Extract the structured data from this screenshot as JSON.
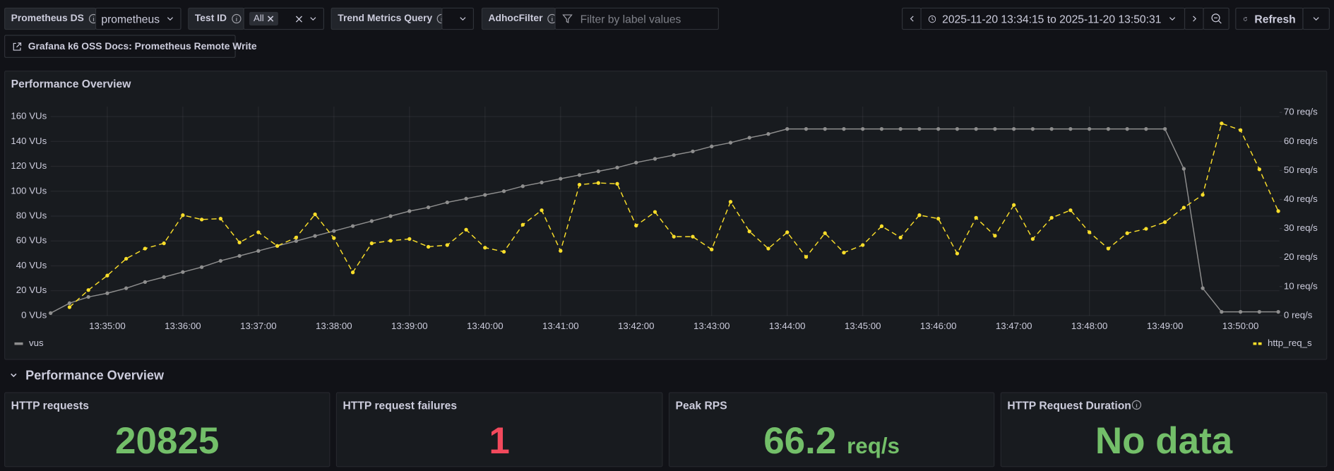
{
  "toolbar": {
    "datasource_label": "Prometheus DS",
    "datasource_value": "prometheus",
    "test_id_label": "Test ID",
    "test_id_value": "All",
    "trend_label": "Trend Metrics Query",
    "adhoc_label": "AdhocFilter",
    "adhoc_placeholder": "Filter by label values",
    "time_range": "2025-11-20 13:34:15 to 2025-11-20 13:50:31",
    "refresh": "Refresh"
  },
  "link": "Grafana k6 OSS Docs: Prometheus Remote Write",
  "chart_data": {
    "type": "line",
    "title": "Performance Overview",
    "grid": true,
    "x": [
      "13:34:15",
      "13:34:30",
      "13:34:45",
      "13:35:00",
      "13:35:15",
      "13:35:30",
      "13:35:45",
      "13:36:00",
      "13:36:15",
      "13:36:30",
      "13:36:45",
      "13:37:00",
      "13:37:15",
      "13:37:30",
      "13:37:45",
      "13:38:00",
      "13:38:15",
      "13:38:30",
      "13:38:45",
      "13:39:00",
      "13:39:15",
      "13:39:30",
      "13:39:45",
      "13:40:00",
      "13:40:15",
      "13:40:30",
      "13:40:45",
      "13:41:00",
      "13:41:15",
      "13:41:30",
      "13:41:45",
      "13:42:00",
      "13:42:15",
      "13:42:30",
      "13:42:45",
      "13:43:00",
      "13:43:15",
      "13:43:30",
      "13:43:45",
      "13:44:00",
      "13:44:15",
      "13:44:30",
      "13:44:45",
      "13:45:00",
      "13:45:15",
      "13:45:30",
      "13:45:45",
      "13:46:00",
      "13:46:15",
      "13:46:30",
      "13:46:45",
      "13:47:00",
      "13:47:15",
      "13:47:30",
      "13:47:45",
      "13:48:00",
      "13:48:15",
      "13:48:30",
      "13:48:45",
      "13:49:00",
      "13:49:15",
      "13:49:30",
      "13:49:45",
      "13:50:00",
      "13:50:15",
      "13:50:30"
    ],
    "xlim": [
      "13:34:15",
      "13:50:31"
    ],
    "xticks": [
      "13:35:00",
      "13:36:00",
      "13:37:00",
      "13:38:00",
      "13:39:00",
      "13:40:00",
      "13:41:00",
      "13:42:00",
      "13:43:00",
      "13:44:00",
      "13:45:00",
      "13:46:00",
      "13:47:00",
      "13:48:00",
      "13:49:00",
      "13:50:00"
    ],
    "ylim": [
      0,
      168
    ],
    "yticks": [
      {
        "value": 0,
        "label": "0 VUs"
      },
      {
        "value": 20,
        "label": "20 VUs"
      },
      {
        "value": 40,
        "label": "40 VUs"
      },
      {
        "value": 60,
        "label": "60 VUs"
      },
      {
        "value": 80,
        "label": "80 VUs"
      },
      {
        "value": 100,
        "label": "100 VUs"
      },
      {
        "value": 120,
        "label": "120 VUs"
      },
      {
        "value": 140,
        "label": "140 VUs"
      },
      {
        "value": 160,
        "label": "160 VUs"
      }
    ],
    "y2lim": [
      0,
      72
    ],
    "y2ticks": [
      {
        "value": 0,
        "label": "0 req/s"
      },
      {
        "value": 10,
        "label": "10 req/s"
      },
      {
        "value": 20,
        "label": "20 req/s"
      },
      {
        "value": 30,
        "label": "30 req/s"
      },
      {
        "value": 40,
        "label": "40 req/s"
      },
      {
        "value": 50,
        "label": "50 req/s"
      },
      {
        "value": 60,
        "label": "60 req/s"
      },
      {
        "value": 70,
        "label": "70 req/s"
      }
    ],
    "series": [
      {
        "name": "vus",
        "color": "#8e8e8e",
        "line_style": "solid",
        "axis": "y",
        "values": [
          2,
          10,
          15,
          18,
          22,
          27,
          31,
          35,
          39,
          44,
          48,
          52,
          56,
          60,
          64,
          68,
          72,
          76,
          80,
          84,
          87,
          91,
          94,
          97,
          100,
          104,
          107,
          110,
          113,
          116,
          119,
          123,
          126,
          129,
          132,
          136,
          139,
          143,
          146,
          150,
          150,
          150,
          150,
          150,
          150,
          150,
          150,
          150,
          150,
          150,
          150,
          150,
          150,
          150,
          150,
          150,
          150,
          150,
          150,
          150,
          118,
          22,
          3,
          3,
          3,
          3
        ]
      },
      {
        "name": "http_req_s",
        "color": "#fade2a",
        "line_style": "dashed",
        "axis": "y2",
        "values": [
          null,
          2.9,
          8.8,
          13.8,
          19.6,
          23.1,
          24.9,
          34.6,
          33.1,
          33.4,
          25.2,
          28.7,
          24.0,
          26.9,
          34.9,
          26.7,
          14.9,
          24.9,
          25.8,
          26.4,
          23.7,
          24.3,
          29.6,
          23.4,
          22.0,
          31.3,
          36.3,
          22.3,
          45.1,
          45.7,
          45.4,
          31.0,
          35.7,
          27.2,
          27.2,
          22.8,
          39.2,
          29.0,
          23.1,
          28.7,
          20.2,
          28.4,
          21.7,
          24.3,
          30.8,
          26.9,
          34.6,
          33.4,
          21.4,
          33.7,
          27.5,
          38.1,
          26.4,
          33.7,
          36.3,
          28.7,
          23.1,
          28.4,
          29.9,
          32.2,
          37.2,
          41.6,
          66.2,
          63.9,
          50.4,
          36.0
        ]
      }
    ]
  },
  "row_title": "Performance Overview",
  "stats": [
    {
      "title": "HTTP requests",
      "value": 20825,
      "color": "#73bf69"
    },
    {
      "title": "HTTP request failures",
      "value": 1,
      "color": "#f2495c"
    },
    {
      "title": "Peak RPS",
      "value": 66.2,
      "unit": "req/s",
      "color": "#73bf69"
    },
    {
      "title": "HTTP Request Duration",
      "value": "No data",
      "color": "#73bf69"
    }
  ]
}
